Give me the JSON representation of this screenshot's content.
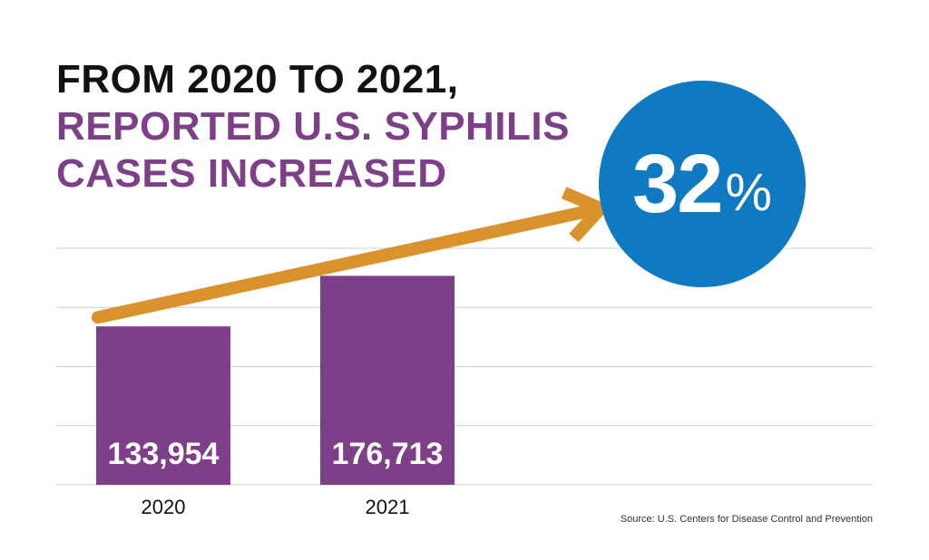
{
  "headline": {
    "line1": "FROM 2020 TO 2021,",
    "line2": "REPORTED U.S. SYPHILIS",
    "line3": "CASES INCREASED"
  },
  "badge": {
    "value": "32",
    "unit": "%"
  },
  "source": "Source: U.S. Centers for Disease Control and Prevention",
  "colors": {
    "bar": "#7d3f87",
    "arrow": "#d9922c",
    "badge": "#0f7ac2",
    "headline_dark": "#111111",
    "gridline": "#cfcfcf"
  },
  "chart_data": {
    "type": "bar",
    "categories": [
      "2020",
      "2021"
    ],
    "values": [
      133954,
      176713
    ],
    "value_labels": [
      "133,954",
      "176,713"
    ],
    "title": "",
    "xlabel": "",
    "ylabel": "",
    "ylim": [
      0,
      200000
    ],
    "grid": true,
    "legend": "none",
    "annotation": {
      "type": "arrow",
      "from": "2020",
      "to": "2021",
      "label": "32%"
    }
  }
}
